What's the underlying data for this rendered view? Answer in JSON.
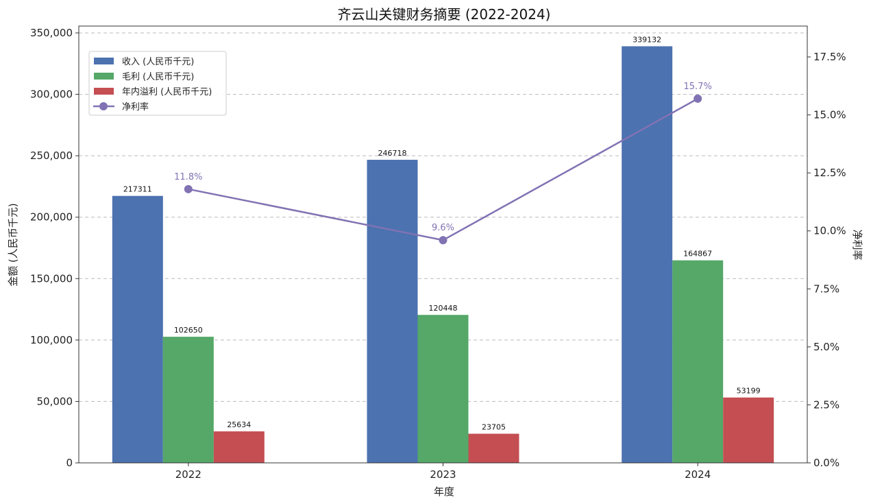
{
  "chart_data": {
    "type": "bar",
    "title": "齐云山关键财务摘要 (2022-2024)",
    "xlabel": "年度",
    "ylabel": "金额 (人民币千元)",
    "y2label": "净利率",
    "categories": [
      "2022",
      "2023",
      "2024"
    ],
    "ylim": [
      0,
      355582
    ],
    "y_ticks": [
      0,
      50000,
      100000,
      150000,
      200000,
      250000,
      300000,
      350000
    ],
    "y_tick_labels": [
      "0",
      "50,000",
      "100,000",
      "150,000",
      "200,000",
      "250,000",
      "300,000",
      "350,000"
    ],
    "y2lim": [
      0,
      18.83
    ],
    "y2_ticks": [
      0,
      2.5,
      5,
      7.5,
      10,
      12.5,
      15,
      17.5
    ],
    "y2_tick_labels": [
      "0.0%",
      "2.5%",
      "5.0%",
      "7.5%",
      "10.0%",
      "12.5%",
      "15.0%",
      "17.5%"
    ],
    "grid": "horizontal dashed",
    "legend_placement": "upper-left",
    "series": [
      {
        "name": "收入 (人民币千元)",
        "type": "bar",
        "color": "#4c72b0",
        "values": [
          217311,
          246718,
          339132
        ],
        "labels": [
          "217311",
          "246718",
          "339132"
        ]
      },
      {
        "name": "毛利 (人民币千元)",
        "type": "bar",
        "color": "#55a868",
        "values": [
          102650,
          120448,
          164867
        ],
        "labels": [
          "102650",
          "120448",
          "164867"
        ]
      },
      {
        "name": "年内溢利 (人民币千元)",
        "type": "bar",
        "color": "#c44e52",
        "values": [
          25634,
          23705,
          53199
        ],
        "labels": [
          "25634",
          "23705",
          "53199"
        ]
      },
      {
        "name": "净利率",
        "type": "line",
        "axis": "right",
        "color": "#8172b3",
        "values": [
          11.8,
          9.6,
          15.7
        ],
        "labels": [
          "11.8%",
          "9.6%",
          "15.7%"
        ]
      }
    ]
  }
}
